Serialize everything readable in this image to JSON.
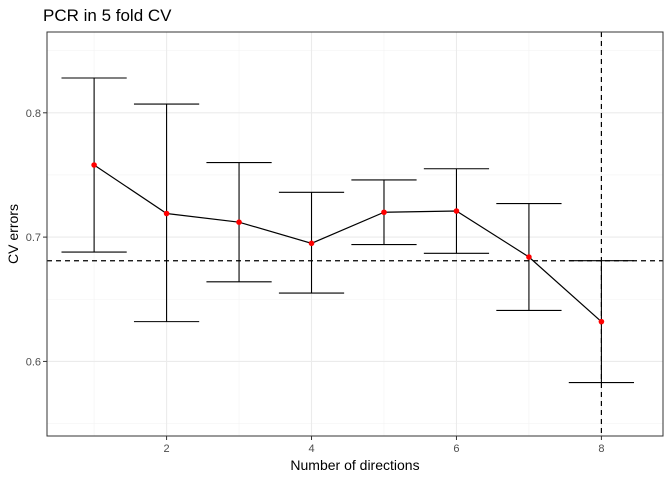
{
  "chart_data": {
    "type": "line",
    "title": "PCR in 5 fold CV",
    "xlabel": "Number of directions",
    "ylabel": "CV errors",
    "xlim": [
      0.35,
      8.85
    ],
    "ylim": [
      0.54,
      0.865
    ],
    "x_ticks": [
      2,
      4,
      6,
      8
    ],
    "y_ticks": [
      0.6,
      0.7,
      0.8
    ],
    "x_tick_labels": [
      "2",
      "4",
      "6",
      "8"
    ],
    "y_tick_labels": [
      "0.6",
      "0.7",
      "0.8"
    ],
    "grid": true,
    "series": [
      {
        "x": [
          1,
          2,
          3,
          4,
          5,
          6,
          7,
          8
        ],
        "values": [
          0.758,
          0.719,
          0.712,
          0.695,
          0.72,
          0.721,
          0.684,
          0.632
        ],
        "error_upper": [
          0.828,
          0.807,
          0.76,
          0.736,
          0.746,
          0.755,
          0.727,
          0.681
        ],
        "error_lower": [
          0.688,
          0.632,
          0.664,
          0.655,
          0.694,
          0.687,
          0.641,
          0.583
        ]
      }
    ],
    "reference_lines": {
      "horizontal_y": 0.681,
      "vertical_x": 8
    },
    "colors": {
      "point": "#ff0000",
      "line": "#000000",
      "grid": "#ebebeb",
      "panel_border": "#333333"
    }
  }
}
